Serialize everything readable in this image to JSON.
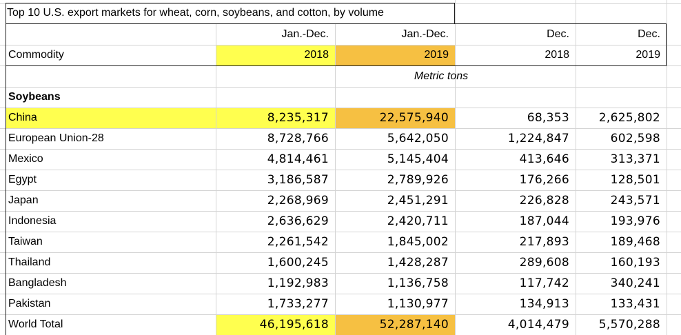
{
  "title": "Top 10 U.S. export markets for wheat, corn, soybeans, and cotton, by volume",
  "headers": {
    "commodity": "Commodity",
    "col1_top": "Jan.-Dec.",
    "col1_bottom": "2018",
    "col2_top": "Jan.-Dec.",
    "col2_bottom": "2019",
    "col3_top": "Dec.",
    "col3_bottom": "2018",
    "col4_top": "Dec.",
    "col4_bottom": "2019"
  },
  "unit_label": "Metric tons",
  "section": "Soybeans",
  "rows": [
    {
      "name": "China",
      "v1": "8,235,317",
      "v2": "22,575,940",
      "v3": "68,353",
      "v4": "2,625,802"
    },
    {
      "name": "European Union-28",
      "v1": "8,728,766",
      "v2": "5,642,050",
      "v3": "1,224,847",
      "v4": "602,598"
    },
    {
      "name": "Mexico",
      "v1": "4,814,461",
      "v2": "5,145,404",
      "v3": "413,646",
      "v4": "313,371"
    },
    {
      "name": "Egypt",
      "v1": "3,186,587",
      "v2": "2,789,926",
      "v3": "176,266",
      "v4": "128,501"
    },
    {
      "name": "Japan",
      "v1": "2,268,969",
      "v2": "2,451,291",
      "v3": "226,828",
      "v4": "243,571"
    },
    {
      "name": "Indonesia",
      "v1": "2,636,629",
      "v2": "2,420,711",
      "v3": "187,044",
      "v4": "193,976"
    },
    {
      "name": "Taiwan",
      "v1": "2,261,542",
      "v2": "1,845,002",
      "v3": "217,893",
      "v4": "189,468"
    },
    {
      "name": "Thailand",
      "v1": "1,600,245",
      "v2": "1,428,287",
      "v3": "289,608",
      "v4": "160,193"
    },
    {
      "name": "Bangladesh",
      "v1": "1,192,983",
      "v2": "1,136,758",
      "v3": "117,742",
      "v4": "340,241"
    },
    {
      "name": "Pakistan",
      "v1": "1,733,277",
      "v2": "1,130,977",
      "v3": "134,913",
      "v4": "133,431"
    },
    {
      "name": "World Total",
      "v1": "46,195,618",
      "v2": "52,287,140",
      "v3": "4,014,479",
      "v4": "5,570,288"
    }
  ],
  "colors": {
    "highlight_yellow": "#ffff4f",
    "highlight_orange": "#f6c042",
    "gridline": "#d4d4d4",
    "border": "#1a1a1a"
  }
}
